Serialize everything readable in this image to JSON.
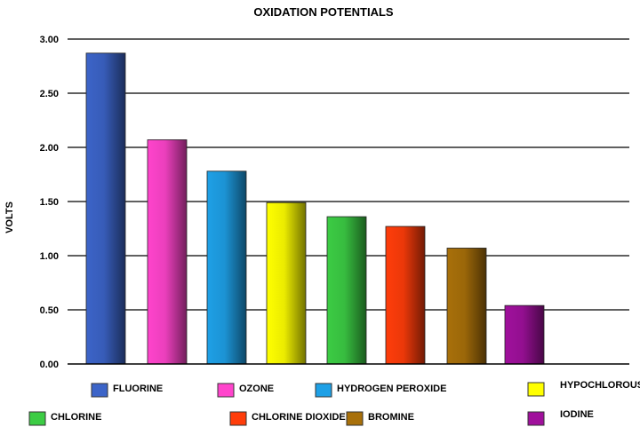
{
  "chart_data": {
    "type": "bar",
    "title": "OXIDATION  POTENTIALS",
    "xlabel": "",
    "ylabel": "VOLTS",
    "ylim": [
      0,
      3.0
    ],
    "yticks": [
      "0.00",
      "0.50",
      "1.00",
      "1.50",
      "2.00",
      "2.50",
      "3.00"
    ],
    "grid": true,
    "legend_position": "bottom",
    "categories": [
      "FLUORINE",
      "OZONE",
      "HYDROGEN PEROXIDE",
      "HYPOCHLOROUS ACID",
      "CHLORINE",
      "CHLORINE DIOXIDE",
      "BROMINE",
      "IODINE"
    ],
    "values": [
      2.87,
      2.07,
      1.78,
      1.49,
      1.36,
      1.27,
      1.07,
      0.54
    ],
    "colors": [
      "#3c64c8",
      "#ff44cc",
      "#1ea0e6",
      "#ffff00",
      "#3ccc44",
      "#ff3d0a",
      "#a8700a",
      "#a0109c"
    ]
  }
}
